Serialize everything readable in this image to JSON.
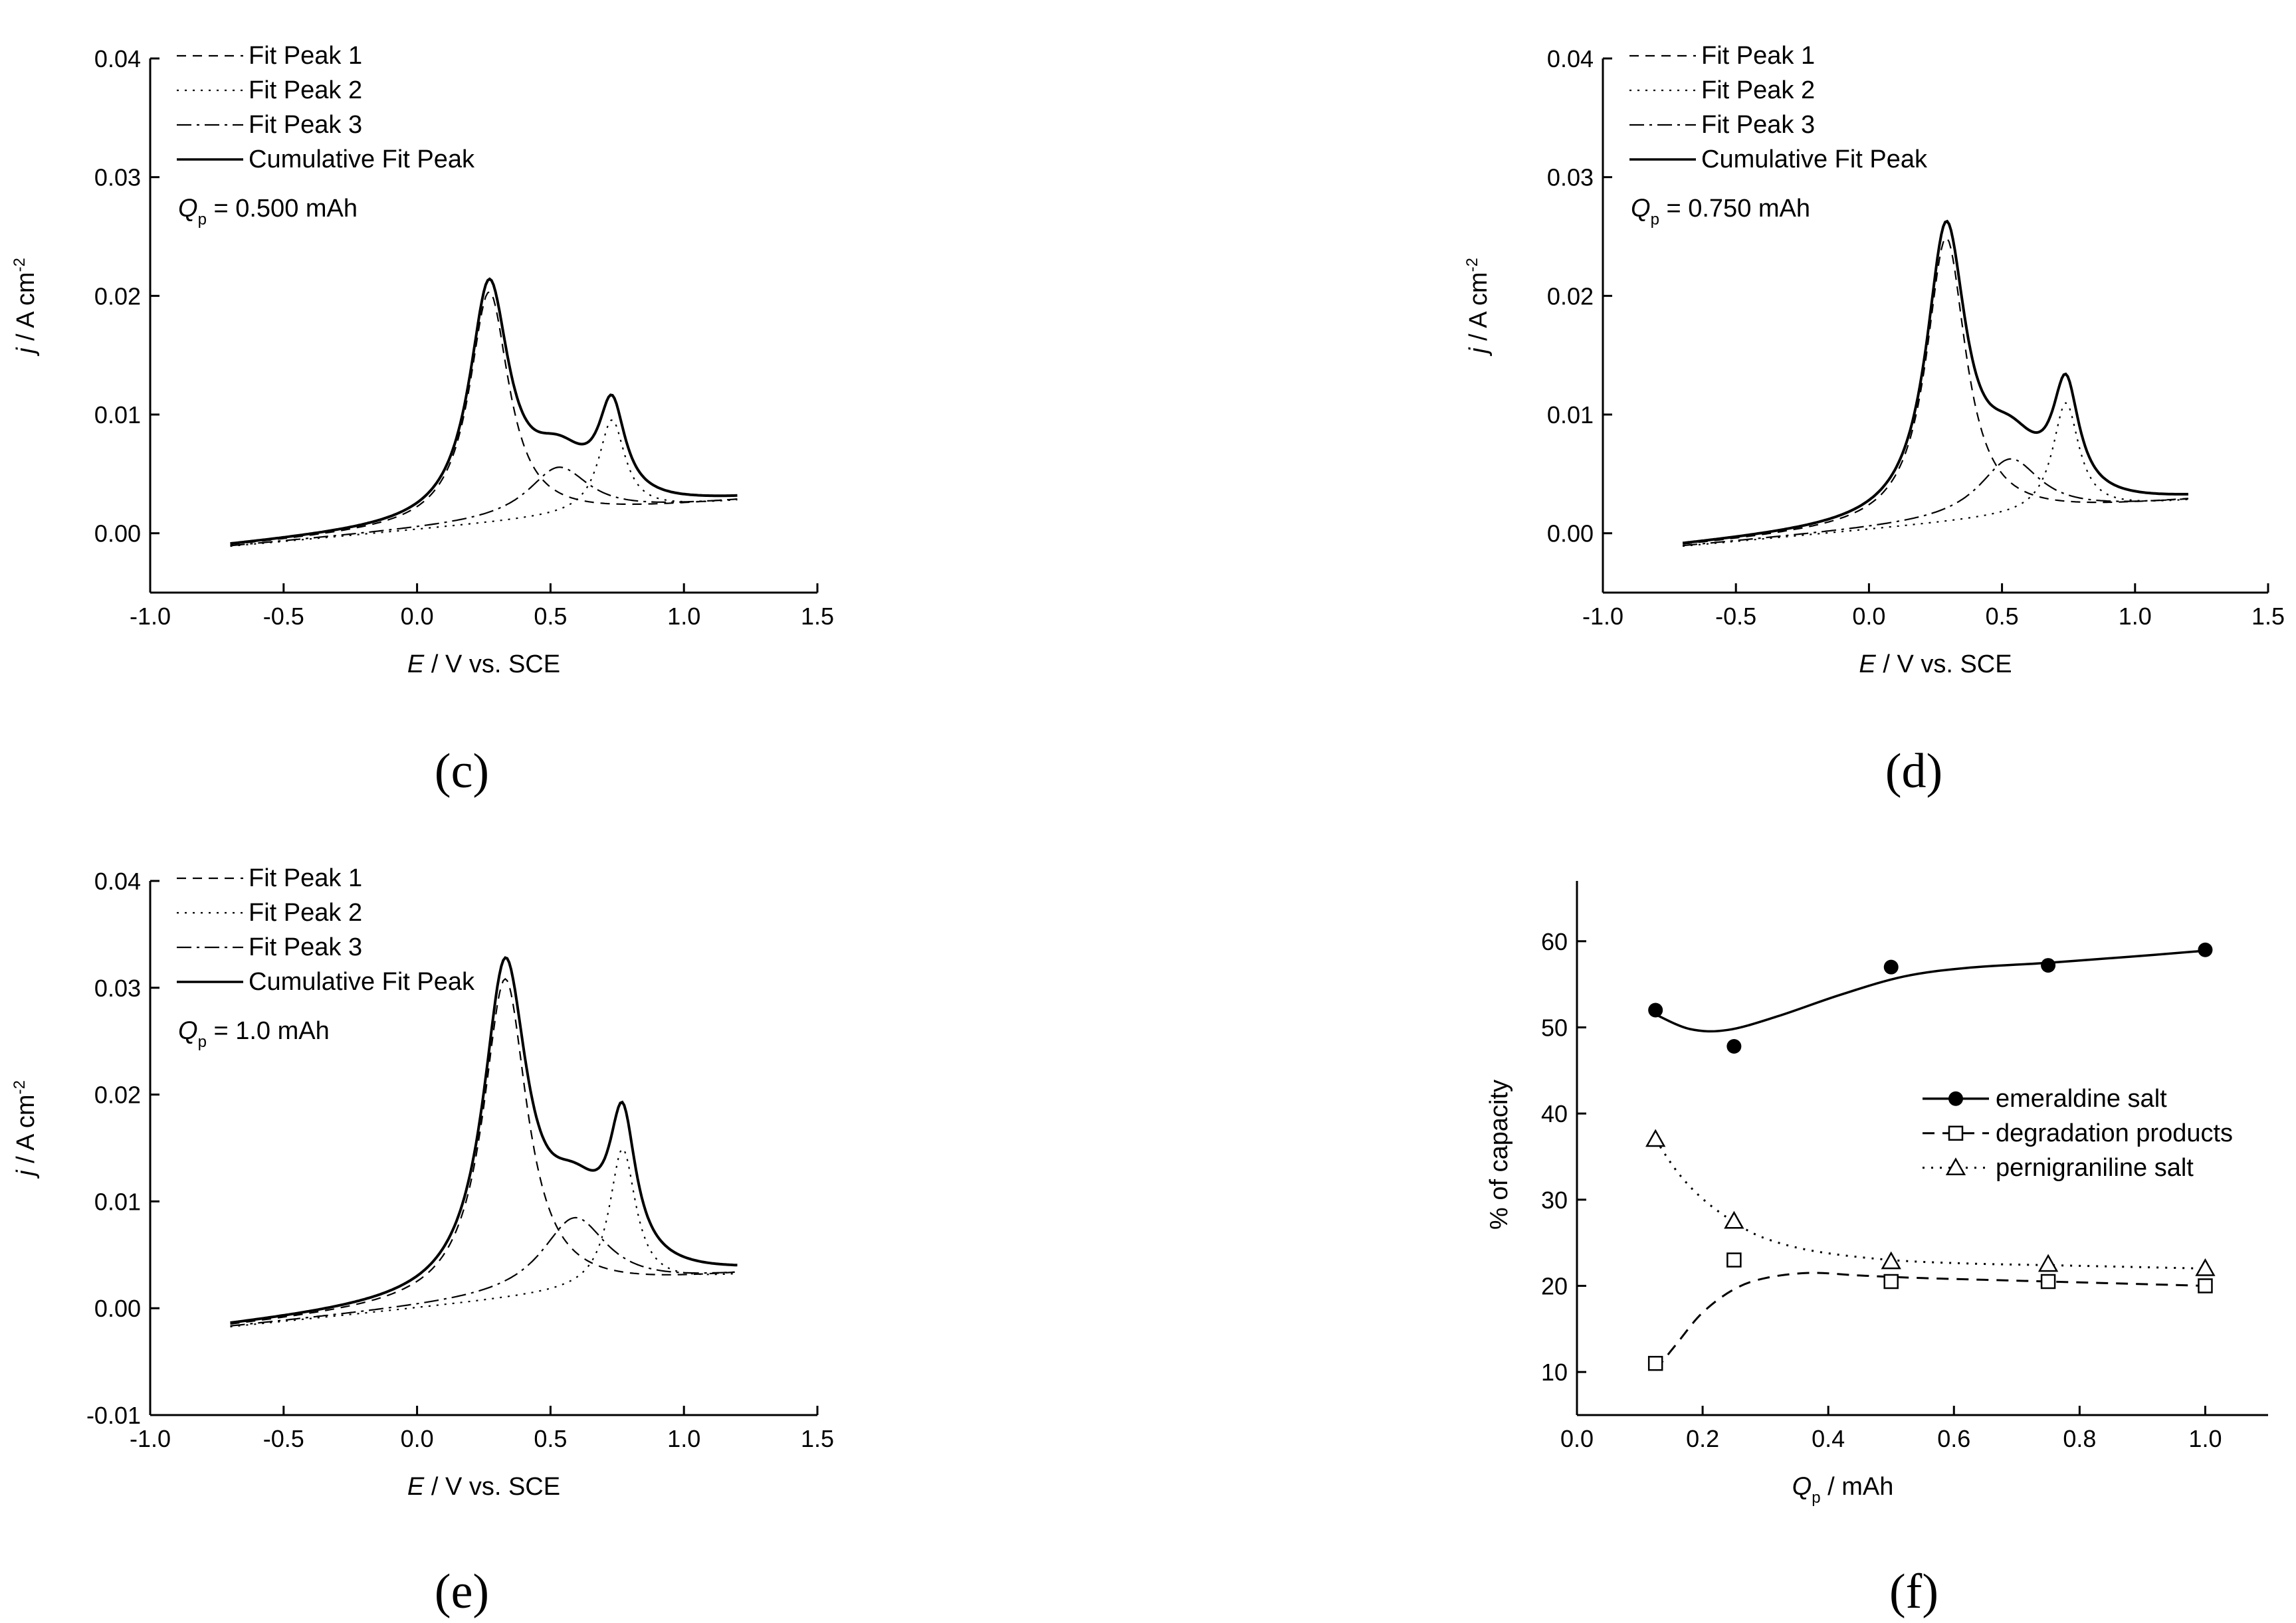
{
  "figure": {
    "panel_letters": [
      "(c)",
      "(d)",
      "(e)",
      "(f)"
    ]
  },
  "chart_data": [
    {
      "id": "c",
      "type": "line",
      "panel_letter": "(c)",
      "xlabel_italic": "E",
      "xlabel_rest": " / V vs. SCE",
      "ylabel_italic": "j",
      "ylabel_rest": " / A cm",
      "ylabel_sup": "-2",
      "xlim": [
        -1.0,
        1.5
      ],
      "ylim": [
        -0.005,
        0.04
      ],
      "x_ticks": [
        -1.0,
        -0.5,
        0.0,
        0.5,
        1.0,
        1.5
      ],
      "x_tick_labels": [
        "-1.0",
        "-0.5",
        "0.0",
        "0.5",
        "1.0",
        "1.5"
      ],
      "y_ticks": [
        0.0,
        0.01,
        0.02,
        0.03,
        0.04
      ],
      "y_tick_labels": [
        "0.00",
        "0.01",
        "0.02",
        "0.03",
        "0.04"
      ],
      "legend": [
        "Fit Peak 1",
        "Fit Peak 2",
        "Fit Peak 3",
        "Cumulative Fit Peak"
      ],
      "annotation_symbol": "Q",
      "annotation_sub": "p",
      "annotation_value": " = 0.500 mAh",
      "x_range": [
        -0.7,
        1.2
      ],
      "baseline": {
        "intercept": 0.0003,
        "slope": 0.002
      },
      "peaks": [
        {
          "name": "Fit Peak 1",
          "center": 0.27,
          "height": 0.0195,
          "width": 0.09
        },
        {
          "name": "Fit Peak 2",
          "center": 0.73,
          "height": 0.0078,
          "width": 0.06
        },
        {
          "name": "Fit Peak 3",
          "center": 0.53,
          "height": 0.0042,
          "width": 0.14
        }
      ]
    },
    {
      "id": "d",
      "type": "line",
      "panel_letter": "(d)",
      "xlabel_italic": "E",
      "xlabel_rest": " / V vs. SCE",
      "ylabel_italic": "j",
      "ylabel_rest": " / A cm",
      "ylabel_sup": "-2",
      "xlim": [
        -1.0,
        1.5
      ],
      "ylim": [
        -0.005,
        0.04
      ],
      "x_ticks": [
        -1.0,
        -0.5,
        0.0,
        0.5,
        1.0,
        1.5
      ],
      "x_tick_labels": [
        "-1.0",
        "-0.5",
        "0.0",
        "0.5",
        "1.0",
        "1.5"
      ],
      "y_ticks": [
        0.0,
        0.01,
        0.02,
        0.03,
        0.04
      ],
      "y_tick_labels": [
        "0.00",
        "0.01",
        "0.02",
        "0.03",
        "0.04"
      ],
      "legend": [
        "Fit Peak 1",
        "Fit Peak 2",
        "Fit Peak 3",
        "Cumulative Fit Peak"
      ],
      "annotation_symbol": "Q",
      "annotation_sub": "p",
      "annotation_value": " = 0.750 mAh",
      "x_range": [
        -0.7,
        1.2
      ],
      "baseline": {
        "intercept": 0.0003,
        "slope": 0.002
      },
      "peaks": [
        {
          "name": "Fit Peak 1",
          "center": 0.29,
          "height": 0.024,
          "width": 0.09
        },
        {
          "name": "Fit Peak 2",
          "center": 0.74,
          "height": 0.0092,
          "width": 0.06
        },
        {
          "name": "Fit Peak 3",
          "center": 0.53,
          "height": 0.0049,
          "width": 0.14
        }
      ]
    },
    {
      "id": "e",
      "type": "line",
      "panel_letter": "(e)",
      "xlabel_italic": "E",
      "xlabel_rest": " / V vs. SCE",
      "ylabel_italic": "j",
      "ylabel_rest": " / A cm",
      "ylabel_sup": "-2",
      "xlim": [
        -1.0,
        1.5
      ],
      "ylim": [
        -0.01,
        0.04
      ],
      "x_ticks": [
        -1.0,
        -0.5,
        0.0,
        0.5,
        1.0,
        1.5
      ],
      "x_tick_labels": [
        "-1.0",
        "-0.5",
        "0.0",
        "0.5",
        "1.0",
        "1.5"
      ],
      "y_ticks": [
        -0.01,
        0.0,
        0.01,
        0.02,
        0.03,
        0.04
      ],
      "y_tick_labels": [
        "-0.01",
        "0.00",
        "0.01",
        "0.02",
        "0.03",
        "0.04"
      ],
      "legend": [
        "Fit Peak 1",
        "Fit Peak 2",
        "Fit Peak 3",
        "Cumulative Fit Peak"
      ],
      "annotation_symbol": "Q",
      "annotation_sub": "p",
      "annotation_value": " = 1.0 mAh",
      "x_range": [
        -0.7,
        1.2
      ],
      "baseline": {
        "intercept": 0.0,
        "slope": 0.0025
      },
      "peaks": [
        {
          "name": "Fit Peak 1",
          "center": 0.33,
          "height": 0.03,
          "width": 0.1
        },
        {
          "name": "Fit Peak 2",
          "center": 0.77,
          "height": 0.013,
          "width": 0.06
        },
        {
          "name": "Fit Peak 3",
          "center": 0.59,
          "height": 0.007,
          "width": 0.15
        }
      ]
    },
    {
      "id": "f",
      "type": "scatter",
      "panel_letter": "(f)",
      "xlabel_italic": "Q",
      "xlabel_sub": "p",
      "xlabel_rest": " / mAh",
      "ylabel": "% of capacity",
      "xlim": [
        0.0,
        1.1
      ],
      "ylim": [
        5,
        67
      ],
      "x_ticks": [
        0.0,
        0.2,
        0.4,
        0.6,
        0.8,
        1.0
      ],
      "x_tick_labels": [
        "0.0",
        "0.2",
        "0.4",
        "0.6",
        "0.8",
        "1.0"
      ],
      "y_ticks": [
        10,
        20,
        30,
        40,
        50,
        60
      ],
      "y_tick_labels": [
        "10",
        "20",
        "30",
        "40",
        "50",
        "60"
      ],
      "series": [
        {
          "name": "emeraldine salt",
          "marker": "filled-circle",
          "x": [
            0.125,
            0.25,
            0.5,
            0.75,
            1.0
          ],
          "y": [
            52,
            47.8,
            57,
            57.2,
            59
          ],
          "fit": [
            [
              0.125,
              51.5
            ],
            [
              0.18,
              49.8
            ],
            [
              0.24,
              49.7
            ],
            [
              0.32,
              51.3
            ],
            [
              0.42,
              53.8
            ],
            [
              0.52,
              55.9
            ],
            [
              0.62,
              56.9
            ],
            [
              0.75,
              57.5
            ],
            [
              0.88,
              58.2
            ],
            [
              1.0,
              58.9
            ]
          ]
        },
        {
          "name": "degradation products",
          "marker": "open-square",
          "x": [
            0.125,
            0.25,
            0.5,
            0.75,
            1.0
          ],
          "y": [
            11,
            23,
            20.5,
            20.5,
            20
          ],
          "fit": [
            [
              0.125,
              10.2
            ],
            [
              0.16,
              13.4
            ],
            [
              0.2,
              16.9
            ],
            [
              0.25,
              19.6
            ],
            [
              0.3,
              20.9
            ],
            [
              0.37,
              21.5
            ],
            [
              0.45,
              21.2
            ],
            [
              0.55,
              20.9
            ],
            [
              0.7,
              20.6
            ],
            [
              0.85,
              20.3
            ],
            [
              1.0,
              20.0
            ]
          ]
        },
        {
          "name": "pernigraniline salt",
          "marker": "open-triangle",
          "x": [
            0.125,
            0.25,
            0.5,
            0.75,
            1.0
          ],
          "y": [
            37,
            27.5,
            22.8,
            22.5,
            22
          ],
          "fit": [
            [
              0.125,
              37.0
            ],
            [
              0.16,
              33.2
            ],
            [
              0.2,
              30.1
            ],
            [
              0.25,
              27.4
            ],
            [
              0.3,
              25.5
            ],
            [
              0.38,
              24.0
            ],
            [
              0.5,
              23.0
            ],
            [
              0.62,
              22.6
            ],
            [
              0.75,
              22.4
            ],
            [
              0.88,
              22.2
            ],
            [
              1.0,
              22.0
            ]
          ]
        }
      ]
    }
  ]
}
